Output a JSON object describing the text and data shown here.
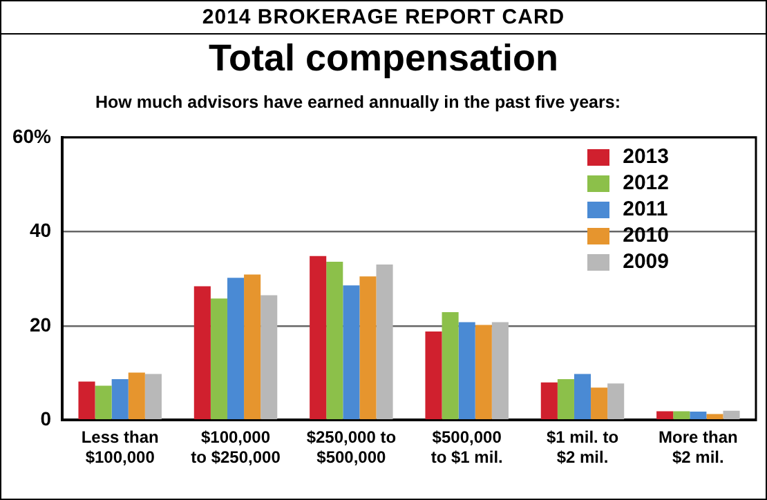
{
  "chart_data": {
    "type": "bar",
    "title": "Total compensation",
    "subtitle": "2014 BROKERAGE REPORT CARD",
    "annotations": [
      "How much advisors have earned annually in the past five years:"
    ],
    "categories": [
      "Less than\n$100,000",
      "$100,000\nto $250,000",
      "$250,000 to\n$500,000",
      "$500,000\nto $1 mil.",
      "$1 mil. to\n$2 mil.",
      "More than\n$2 mil."
    ],
    "series": [
      {
        "name": "2013",
        "color": "#d0202e",
        "values": [
          8.2,
          28.4,
          34.8,
          18.8,
          8.0,
          1.9
        ]
      },
      {
        "name": "2012",
        "color": "#8cc04a",
        "values": [
          7.3,
          25.8,
          33.6,
          22.9,
          8.7,
          1.9
        ]
      },
      {
        "name": "2011",
        "color": "#4a8ad4",
        "values": [
          8.7,
          30.2,
          28.6,
          20.8,
          9.8,
          1.8
        ]
      },
      {
        "name": "2010",
        "color": "#e6952e",
        "values": [
          10.1,
          30.9,
          30.5,
          20.2,
          6.9,
          1.3
        ]
      },
      {
        "name": "2009",
        "color": "#b8b8b8",
        "values": [
          9.8,
          26.5,
          33.0,
          20.8,
          7.8,
          2.0
        ]
      }
    ],
    "ylim": [
      0,
      60
    ],
    "yticks": [
      0,
      20,
      40,
      {
        "value": 60,
        "label": "60%"
      }
    ],
    "grid": "y",
    "legend": "top right"
  }
}
